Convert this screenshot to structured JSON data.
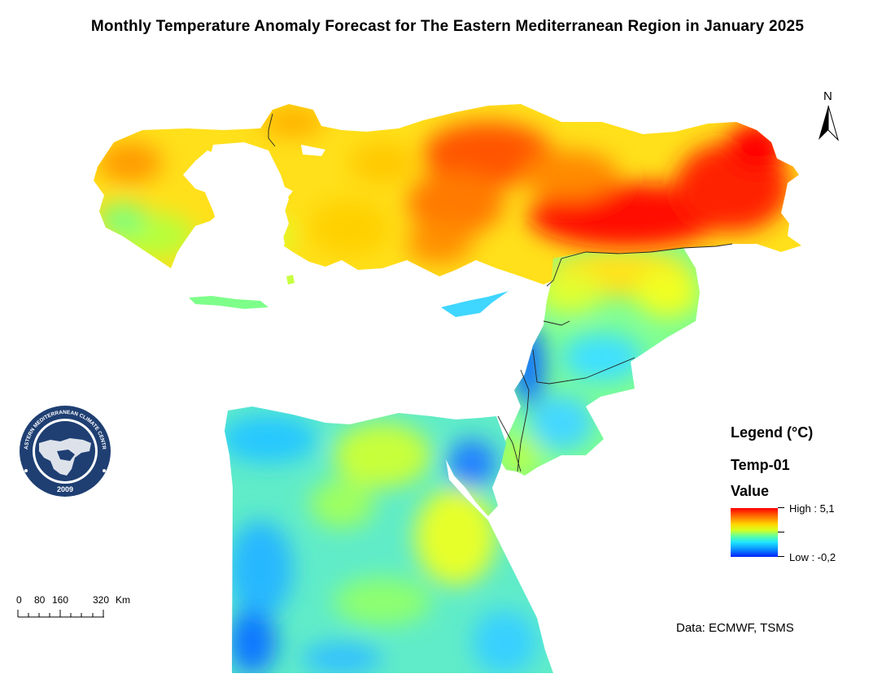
{
  "map": {
    "title": "Monthly Temperature Anomaly Forecast  for The Eastern Mediterranean Region in January 2025",
    "north_label": "N",
    "source": "Data: ECMWF, TSMS",
    "logo": {
      "text_top": "EASTERN MEDITERRANEAN CLIMATE CENTRE",
      "year": "2009"
    },
    "scale_bar": {
      "ticks": [
        "0",
        "80",
        "160",
        "320"
      ],
      "unit": "Km"
    },
    "legend": {
      "title": "Legend (°C)",
      "layer": "Temp-01",
      "field": "Value",
      "high_label": "High : 5,1",
      "low_label": "Low : -0,2",
      "high_value": 5.1,
      "low_value": -0.2,
      "colors": [
        "#ff0000",
        "#ff6a00",
        "#ffd500",
        "#d8ff1e",
        "#5cffa3",
        "#1ee6ff",
        "#0a8dff",
        "#0020ff"
      ]
    }
  }
}
